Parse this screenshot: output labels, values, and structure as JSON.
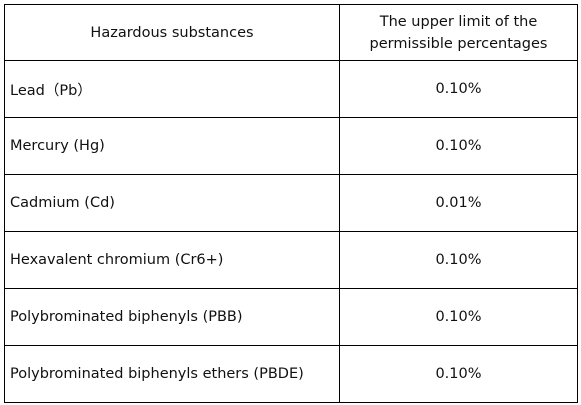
{
  "table": {
    "header": [
      "Hazardous substances",
      "The upper limit of the permissible percentages"
    ],
    "rows": [
      [
        "Lead（Pb）",
        "0.10%"
      ],
      [
        "Mercury (Hg)",
        "0.10%"
      ],
      [
        "Cadmium (Cd)",
        "0.01%"
      ],
      [
        "Hexavalent chromium (Cr6+)",
        "0.10%"
      ],
      [
        "Polybrominated biphenyls (PBB)",
        "0.10%"
      ],
      [
        "Polybrominated biphenyls ethers (PBDE)",
        "0.10%"
      ]
    ]
  }
}
